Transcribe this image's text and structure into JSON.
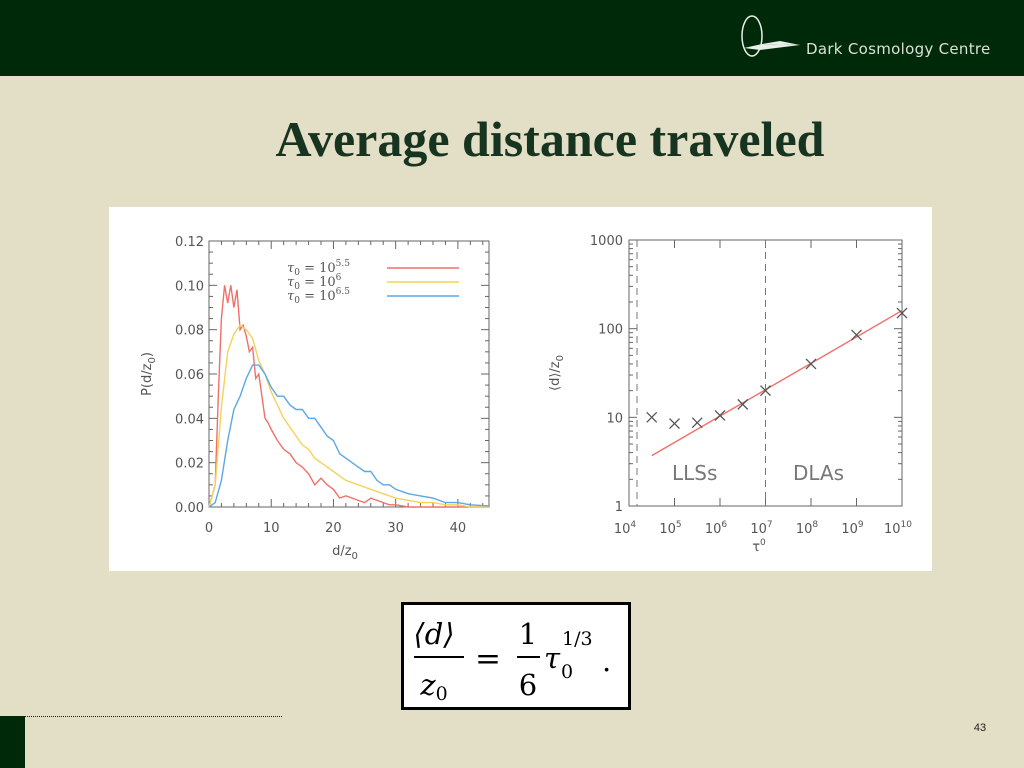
{
  "header": {
    "logo_text": "Dark Cosmology Centre",
    "bg_color": "#00290a",
    "icon": "dcc-logo-icon"
  },
  "slide": {
    "title": "Average distance traveled",
    "page_number": "43",
    "background": "#e3dfc7"
  },
  "formula": {
    "numerator": "⟨d⟩",
    "denominator": "z",
    "denominator_sub": "0",
    "equals": "=",
    "frac_num": "1",
    "frac_den": "6",
    "tau": "τ",
    "tau_sub": "0",
    "tau_exp": "1/3",
    "trailing": "."
  },
  "chart_data": [
    {
      "type": "line",
      "xlabel": "d/z",
      "xlabel_sub": "0",
      "ylabel": "P(d/z",
      "ylabel_sub": "0",
      "ylabel_close": ")",
      "xlim": [
        0,
        45
      ],
      "ylim": [
        0,
        0.12
      ],
      "xticks": [
        0,
        10,
        20,
        30,
        40
      ],
      "xtick_labels": [
        "0",
        "10",
        "20",
        "30",
        "40"
      ],
      "yticks": [
        0,
        0.02,
        0.04,
        0.06,
        0.08,
        0.1,
        0.12
      ],
      "ytick_labels": [
        "0.00",
        "0.02",
        "0.04",
        "0.06",
        "0.08",
        "0.10",
        "0.12"
      ],
      "legend_placement": "top-right",
      "series": [
        {
          "name": "τ",
          "name_sub": "0",
          "name_mid": " = 10",
          "name_sup": "5.5",
          "color": "#f0706a",
          "x": [
            0,
            1,
            1.5,
            2,
            2.5,
            3,
            3.5,
            4,
            4.5,
            5,
            5.5,
            6,
            6.5,
            7,
            7.5,
            8,
            8.5,
            9,
            9.5,
            10,
            11,
            12,
            13,
            14,
            15,
            16,
            17,
            18,
            19,
            20,
            21,
            22,
            23,
            24,
            25,
            26,
            27,
            28,
            29,
            30,
            32,
            34,
            36,
            38,
            40,
            42,
            45
          ],
          "y": [
            0,
            0.01,
            0.05,
            0.085,
            0.1,
            0.092,
            0.1,
            0.09,
            0.098,
            0.08,
            0.082,
            0.077,
            0.07,
            0.072,
            0.058,
            0.06,
            0.05,
            0.04,
            0.038,
            0.035,
            0.03,
            0.026,
            0.024,
            0.02,
            0.018,
            0.015,
            0.01,
            0.013,
            0.01,
            0.008,
            0.004,
            0.005,
            0.004,
            0.003,
            0.002,
            0.004,
            0.003,
            0.002,
            0.001,
            0.001,
            0,
            0,
            0,
            0,
            0,
            0,
            0
          ]
        },
        {
          "name": "τ",
          "name_sub": "0",
          "name_mid": " = 10",
          "name_sup": "6",
          "color": "#f5d25a",
          "x": [
            0,
            1,
            2,
            3,
            4,
            5,
            6,
            7,
            8,
            9,
            10,
            11,
            12,
            13,
            14,
            15,
            16,
            17,
            18,
            19,
            20,
            22,
            24,
            26,
            28,
            30,
            32,
            34,
            36,
            38,
            40,
            42,
            45
          ],
          "y": [
            0,
            0.01,
            0.045,
            0.07,
            0.078,
            0.082,
            0.08,
            0.076,
            0.066,
            0.06,
            0.052,
            0.046,
            0.04,
            0.036,
            0.032,
            0.028,
            0.026,
            0.022,
            0.02,
            0.018,
            0.016,
            0.012,
            0.01,
            0.008,
            0.006,
            0.004,
            0.003,
            0.002,
            0.002,
            0.001,
            0.001,
            0,
            0
          ]
        },
        {
          "name": "τ",
          "name_sub": "0",
          "name_mid": " = 10",
          "name_sup": "6.5",
          "color": "#5aa8e6",
          "x": [
            0,
            1,
            2,
            3,
            4,
            5,
            6,
            7,
            8,
            9,
            10,
            11,
            12,
            13,
            14,
            15,
            16,
            17,
            18,
            19,
            20,
            21,
            22,
            23,
            24,
            25,
            26,
            27,
            28,
            29,
            30,
            32,
            34,
            36,
            38,
            40,
            42,
            45
          ],
          "y": [
            0,
            0.002,
            0.012,
            0.03,
            0.044,
            0.05,
            0.058,
            0.064,
            0.064,
            0.06,
            0.054,
            0.05,
            0.05,
            0.046,
            0.044,
            0.044,
            0.04,
            0.04,
            0.036,
            0.032,
            0.03,
            0.024,
            0.022,
            0.02,
            0.018,
            0.016,
            0.016,
            0.012,
            0.01,
            0.01,
            0.008,
            0.006,
            0.005,
            0.004,
            0.002,
            0.002,
            0.001,
            0.0005
          ]
        }
      ]
    },
    {
      "type": "scatter",
      "xscale": "log",
      "yscale": "log",
      "xlabel": "τ",
      "xlabel_sup": "0",
      "ylabel": "⟨d⟩/z",
      "ylabel_sub": "0",
      "xlim": [
        10000,
        10000000000
      ],
      "ylim": [
        1,
        1000
      ],
      "xtick_labels": [
        "10",
        "10",
        "10",
        "10",
        "10",
        "10",
        "10"
      ],
      "xtick_sups": [
        "4",
        "5",
        "6",
        "7",
        "8",
        "9",
        "10"
      ],
      "xtick_values": [
        10000,
        100000,
        1000000,
        10000000,
        100000000,
        1000000000,
        10000000000
      ],
      "ytick_labels": [
        "1",
        "10",
        "100",
        "1000"
      ],
      "ytick_values": [
        1,
        10,
        100,
        1000
      ],
      "vlines": [
        15000,
        10000000
      ],
      "regions": [
        "LLSs",
        "DLAs"
      ],
      "points": {
        "x": [
          31600,
          100000,
          316000,
          1000000,
          3160000,
          10000000,
          100000000,
          1000000000,
          10000000000
        ],
        "y": [
          10,
          8.5,
          8.7,
          10.5,
          14,
          20,
          40,
          85,
          150
        ]
      },
      "fit": {
        "color": "#f0706a",
        "x": [
          31600,
          10000000000
        ],
        "y": [
          3.7,
          160
        ]
      }
    }
  ]
}
